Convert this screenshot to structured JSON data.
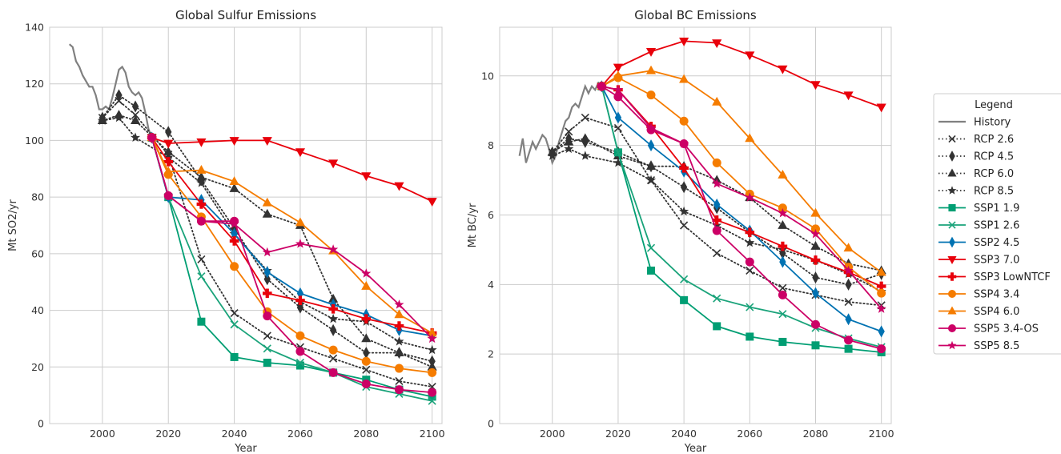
{
  "colors": {
    "History": "#808080",
    "RCP": "#333333",
    "SSP1 1.9": "#009e73",
    "SSP1 2.6": "#1aa37a",
    "SSP2 4.5": "#0072b2",
    "SSP3 7.0": "#e8000b",
    "SSP3 LowNTCF": "#e8000b",
    "SSP4 3.4": "#f57c00",
    "SSP4 6.0": "#f57c00",
    "SSP5 3.4-OS": "#cc0066",
    "SSP5 8.5": "#cc0066",
    "grid": "#cccccc",
    "axis_frame": "#cccccc"
  },
  "legend": {
    "title": "Legend",
    "entries": [
      {
        "label": "History",
        "marker": "none",
        "dash": "solid",
        "color_key": "History"
      },
      {
        "label": "RCP 2.6",
        "marker": "x-mark",
        "dash": "dotted",
        "color_key": "RCP"
      },
      {
        "label": "RCP 4.5",
        "marker": "thin-diamond",
        "dash": "dotted",
        "color_key": "RCP"
      },
      {
        "label": "RCP 6.0",
        "marker": "triangle-up",
        "dash": "dotted",
        "color_key": "RCP"
      },
      {
        "label": "RCP 8.5",
        "marker": "star",
        "dash": "dotted",
        "color_key": "RCP"
      },
      {
        "label": "SSP1 1.9",
        "marker": "square",
        "dash": "solid",
        "color_key": "SSP1 1.9"
      },
      {
        "label": "SSP1 2.6",
        "marker": "x-mark",
        "dash": "solid",
        "color_key": "SSP1 2.6"
      },
      {
        "label": "SSP2 4.5",
        "marker": "thin-diamond",
        "dash": "solid",
        "color_key": "SSP2 4.5"
      },
      {
        "label": "SSP3 7.0",
        "marker": "triangle-down",
        "dash": "solid",
        "color_key": "SSP3 7.0"
      },
      {
        "label": "SSP3 LowNTCF",
        "marker": "plus",
        "dash": "solid",
        "color_key": "SSP3 LowNTCF"
      },
      {
        "label": "SSP4 3.4",
        "marker": "circle",
        "dash": "solid",
        "color_key": "SSP4 3.4"
      },
      {
        "label": "SSP4 6.0",
        "marker": "triangle-up",
        "dash": "solid",
        "color_key": "SSP4 6.0"
      },
      {
        "label": "SSP5 3.4-OS",
        "marker": "circle",
        "dash": "solid",
        "color_key": "SSP5 3.4-OS"
      },
      {
        "label": "SSP5 8.5",
        "marker": "star",
        "dash": "solid",
        "color_key": "SSP5 8.5"
      }
    ]
  },
  "chart_data": [
    {
      "type": "line",
      "title": "Global Sulfur Emissions",
      "xlabel": "Year",
      "ylabel": "Mt SO2/yr",
      "xlim": [
        1984,
        2103
      ],
      "ylim": [
        0,
        140
      ],
      "xticks": [
        2000,
        2020,
        2040,
        2060,
        2080,
        2100
      ],
      "yticks": [
        0,
        20,
        40,
        60,
        80,
        100,
        120,
        140
      ],
      "grid": true,
      "history": {
        "x": [
          1990,
          1991,
          1992,
          1993,
          1994,
          1995,
          1996,
          1997,
          1998,
          1999,
          2000,
          2001,
          2002,
          2003,
          2004,
          2005,
          2006,
          2007,
          2008,
          2009,
          2010,
          2011,
          2012,
          2013,
          2014,
          2015
        ],
        "y": [
          134,
          133,
          128,
          126,
          123,
          121,
          119,
          119,
          116,
          111,
          111,
          112,
          111,
          115,
          120,
          125,
          126,
          124,
          119,
          117,
          116,
          117,
          115,
          110,
          104,
          101
        ]
      },
      "series": [
        {
          "name": "RCP 2.6",
          "x": [
            2000,
            2005,
            2010,
            2020,
            2030,
            2040,
            2050,
            2060,
            2070,
            2080,
            2090,
            2100
          ],
          "y": [
            108,
            114,
            109,
            95,
            58,
            39,
            31,
            27,
            23,
            19,
            15,
            13
          ]
        },
        {
          "name": "RCP 4.5",
          "x": [
            2000,
            2005,
            2010,
            2020,
            2030,
            2040,
            2050,
            2060,
            2070,
            2080,
            2090,
            2100
          ],
          "y": [
            108,
            116,
            112,
            103,
            86,
            69,
            51,
            41,
            33,
            25,
            25,
            22
          ]
        },
        {
          "name": "RCP 6.0",
          "x": [
            2000,
            2005,
            2010,
            2020,
            2030,
            2040,
            2050,
            2060,
            2070,
            2080,
            2090,
            2100
          ],
          "y": [
            107,
            109,
            107,
            96,
            87,
            83,
            74,
            70,
            44,
            30,
            25,
            20
          ]
        },
        {
          "name": "RCP 8.5",
          "x": [
            2000,
            2005,
            2010,
            2020,
            2030,
            2040,
            2050,
            2060,
            2070,
            2080,
            2090,
            2100
          ],
          "y": [
            107,
            108,
            101,
            94,
            85,
            67,
            54,
            43,
            37,
            36,
            29,
            26
          ]
        },
        {
          "name": "SSP1 1.9",
          "x": [
            2015,
            2020,
            2030,
            2040,
            2050,
            2060,
            2070,
            2080,
            2090,
            2100
          ],
          "y": [
            101,
            80,
            36,
            23.5,
            21.5,
            20.5,
            18,
            15.5,
            12,
            9.5
          ]
        },
        {
          "name": "SSP1 2.6",
          "x": [
            2015,
            2020,
            2030,
            2040,
            2050,
            2060,
            2070,
            2080,
            2090,
            2100
          ],
          "y": [
            101,
            80,
            52,
            35,
            26.5,
            21.5,
            18,
            13,
            10.5,
            8
          ]
        },
        {
          "name": "SSP2 4.5",
          "x": [
            2015,
            2020,
            2030,
            2040,
            2050,
            2060,
            2070,
            2080,
            2090,
            2100
          ],
          "y": [
            101,
            80,
            79,
            67,
            53.5,
            46,
            42,
            38.5,
            33,
            31
          ]
        },
        {
          "name": "SSP3 7.0",
          "x": [
            2015,
            2020,
            2030,
            2040,
            2050,
            2060,
            2070,
            2080,
            2090,
            2100
          ],
          "y": [
            101,
            99,
            99.5,
            100,
            100,
            96,
            92,
            87.5,
            84,
            78.5
          ]
        },
        {
          "name": "SSP3 LowNTCF",
          "x": [
            2015,
            2020,
            2030,
            2040,
            2050,
            2060,
            2070,
            2080,
            2090,
            2100
          ],
          "y": [
            101,
            92.5,
            77.5,
            64.5,
            46,
            43.5,
            40.5,
            37,
            34.5,
            32
          ]
        },
        {
          "name": "SSP4 3.4",
          "x": [
            2015,
            2020,
            2030,
            2040,
            2050,
            2060,
            2070,
            2080,
            2090,
            2100
          ],
          "y": [
            101,
            88,
            73,
            55.5,
            39.5,
            31,
            26,
            22,
            19.5,
            18
          ]
        },
        {
          "name": "SSP4 6.0",
          "x": [
            2015,
            2020,
            2030,
            2040,
            2050,
            2060,
            2070,
            2080,
            2090,
            2100
          ],
          "y": [
            101,
            89,
            89.5,
            85.5,
            78,
            71,
            61,
            48.5,
            38.5,
            32
          ]
        },
        {
          "name": "SSP5 3.4-OS",
          "x": [
            2015,
            2020,
            2030,
            2040,
            2050,
            2060,
            2070,
            2080,
            2090,
            2100
          ],
          "y": [
            101,
            80.5,
            71.5,
            71.5,
            38,
            25.5,
            18,
            14,
            12,
            11
          ]
        },
        {
          "name": "SSP5 8.5",
          "x": [
            2015,
            2020,
            2030,
            2040,
            2050,
            2060,
            2070,
            2080,
            2090,
            2100
          ],
          "y": [
            101,
            80.5,
            71.5,
            70.5,
            60.5,
            63.5,
            61.5,
            53,
            42,
            30
          ]
        }
      ]
    },
    {
      "type": "line",
      "title": "Global BC Emissions",
      "xlabel": "Year",
      "ylabel": "Mt BC/yr",
      "xlim": [
        1984,
        2103
      ],
      "ylim": [
        0,
        11.4
      ],
      "xticks": [
        2000,
        2020,
        2040,
        2060,
        2080,
        2100
      ],
      "yticks": [
        0,
        2,
        4,
        6,
        8,
        10
      ],
      "grid": true,
      "history": {
        "x": [
          1990,
          1991,
          1992,
          1993,
          1994,
          1995,
          1996,
          1997,
          1998,
          1999,
          2000,
          2001,
          2002,
          2003,
          2004,
          2005,
          2006,
          2007,
          2008,
          2009,
          2010,
          2011,
          2012,
          2013,
          2014,
          2015
        ],
        "y": [
          7.7,
          8.2,
          7.5,
          7.8,
          8.1,
          7.9,
          8.1,
          8.3,
          8.2,
          7.9,
          7.5,
          7.7,
          8.1,
          8.4,
          8.7,
          8.8,
          9.1,
          9.2,
          9.1,
          9.4,
          9.7,
          9.5,
          9.7,
          9.6,
          9.8,
          9.7
        ]
      },
      "series": [
        {
          "name": "RCP 2.6",
          "x": [
            2000,
            2005,
            2010,
            2020,
            2030,
            2040,
            2050,
            2060,
            2070,
            2080,
            2090,
            2100
          ],
          "y": [
            7.8,
            8.4,
            8.8,
            8.5,
            7.0,
            5.7,
            4.9,
            4.4,
            3.9,
            3.7,
            3.5,
            3.4
          ]
        },
        {
          "name": "RCP 4.5",
          "x": [
            2000,
            2005,
            2010,
            2020,
            2030,
            2040,
            2050,
            2060,
            2070,
            2080,
            2090,
            2100
          ],
          "y": [
            7.8,
            8.2,
            8.1,
            7.8,
            7.4,
            6.8,
            6.2,
            5.5,
            4.9,
            4.2,
            4.0,
            4.3
          ]
        },
        {
          "name": "RCP 6.0",
          "x": [
            2000,
            2005,
            2010,
            2020,
            2030,
            2040,
            2050,
            2060,
            2070,
            2080,
            2090,
            2100
          ],
          "y": [
            7.8,
            8.1,
            8.2,
            7.7,
            7.4,
            7.4,
            7.0,
            6.5,
            5.7,
            5.1,
            4.6,
            4.4
          ]
        },
        {
          "name": "RCP 8.5",
          "x": [
            2000,
            2005,
            2010,
            2020,
            2030,
            2040,
            2050,
            2060,
            2070,
            2080,
            2090,
            2100
          ],
          "y": [
            7.7,
            7.9,
            7.7,
            7.5,
            7.0,
            6.1,
            5.7,
            5.2,
            5.0,
            4.7,
            4.3,
            3.8
          ]
        },
        {
          "name": "SSP1 1.9",
          "x": [
            2015,
            2020,
            2030,
            2040,
            2050,
            2060,
            2070,
            2080,
            2090,
            2100
          ],
          "y": [
            9.7,
            7.8,
            4.4,
            3.55,
            2.8,
            2.5,
            2.35,
            2.25,
            2.15,
            2.05
          ]
        },
        {
          "name": "SSP1 2.6",
          "x": [
            2015,
            2020,
            2030,
            2040,
            2050,
            2060,
            2070,
            2080,
            2090,
            2100
          ],
          "y": [
            9.7,
            7.8,
            5.05,
            4.15,
            3.6,
            3.35,
            3.15,
            2.75,
            2.45,
            2.2
          ]
        },
        {
          "name": "SSP2 4.5",
          "x": [
            2015,
            2020,
            2030,
            2040,
            2050,
            2060,
            2070,
            2080,
            2090,
            2100
          ],
          "y": [
            9.7,
            8.8,
            8.0,
            7.25,
            6.3,
            5.55,
            4.65,
            3.75,
            3.0,
            2.65
          ]
        },
        {
          "name": "SSP3 7.0",
          "x": [
            2015,
            2020,
            2030,
            2040,
            2050,
            2060,
            2070,
            2080,
            2090,
            2100
          ],
          "y": [
            9.7,
            10.25,
            10.7,
            11.0,
            10.95,
            10.6,
            10.2,
            9.75,
            9.45,
            9.1
          ]
        },
        {
          "name": "SSP3 LowNTCF",
          "x": [
            2015,
            2020,
            2030,
            2040,
            2050,
            2060,
            2070,
            2080,
            2090,
            2100
          ],
          "y": [
            9.7,
            9.6,
            8.55,
            7.35,
            5.85,
            5.5,
            5.1,
            4.7,
            4.35,
            3.95
          ]
        },
        {
          "name": "SSP4 3.4",
          "x": [
            2015,
            2020,
            2030,
            2040,
            2050,
            2060,
            2070,
            2080,
            2090,
            2100
          ],
          "y": [
            9.7,
            9.95,
            9.45,
            8.7,
            7.5,
            6.6,
            6.2,
            5.6,
            4.5,
            3.75
          ]
        },
        {
          "name": "SSP4 6.0",
          "x": [
            2015,
            2020,
            2030,
            2040,
            2050,
            2060,
            2070,
            2080,
            2090,
            2100
          ],
          "y": [
            9.7,
            10.0,
            10.15,
            9.9,
            9.25,
            8.2,
            7.15,
            6.05,
            5.05,
            4.35
          ]
        },
        {
          "name": "SSP5 3.4-OS",
          "x": [
            2015,
            2020,
            2030,
            2040,
            2050,
            2060,
            2070,
            2080,
            2090,
            2100
          ],
          "y": [
            9.7,
            9.4,
            8.45,
            8.05,
            5.55,
            4.65,
            3.7,
            2.85,
            2.4,
            2.15
          ]
        },
        {
          "name": "SSP5 8.5",
          "x": [
            2015,
            2020,
            2030,
            2040,
            2050,
            2060,
            2070,
            2080,
            2090,
            2100
          ],
          "y": [
            9.7,
            9.6,
            8.5,
            8.05,
            6.9,
            6.5,
            6.05,
            5.45,
            4.4,
            3.3
          ]
        }
      ]
    }
  ]
}
